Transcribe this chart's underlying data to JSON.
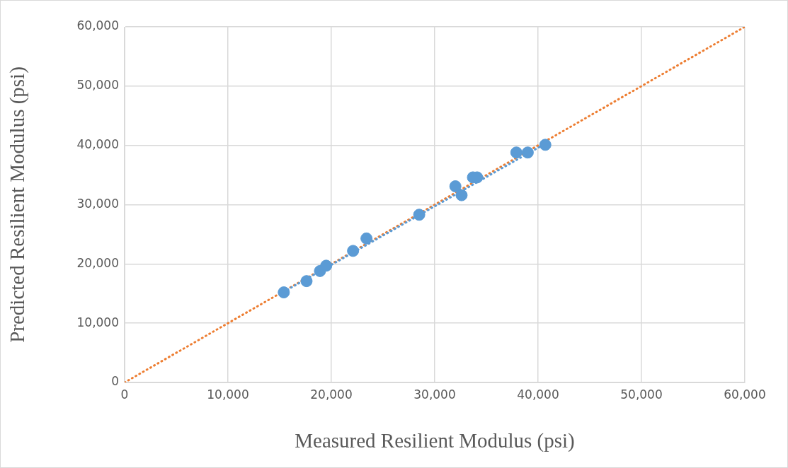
{
  "chart_data": {
    "type": "scatter",
    "xlabel": "Measured Resilient Modulus (psi)",
    "ylabel": "Predicted Resilient Modulus (psi)",
    "xlim": [
      0,
      60000
    ],
    "ylim": [
      0,
      60000
    ],
    "xticks": [
      0,
      {
        "value": 10000,
        "label": "10,000"
      },
      {
        "value": 20000,
        "label": "20,000"
      },
      {
        "value": 30000,
        "label": "30,000"
      },
      {
        "value": 40000,
        "label": "40,000"
      },
      {
        "value": 50000,
        "label": "50,000"
      },
      {
        "value": 60000,
        "label": "60,000"
      }
    ],
    "yticks": [
      0,
      {
        "value": 10000,
        "label": "10,000"
      },
      {
        "value": 20000,
        "label": "20,000"
      },
      {
        "value": 30000,
        "label": "30,000"
      },
      {
        "value": 40000,
        "label": "40,000"
      },
      {
        "value": 50000,
        "label": "50,000"
      },
      {
        "value": 60000,
        "label": "60,000"
      }
    ],
    "grid": true,
    "legend": false,
    "marker": "circle",
    "series": [
      {
        "color": "#5b9bd5",
        "x": [
          15400,
          17600,
          18900,
          19500,
          22100,
          23400,
          28500,
          32000,
          32600,
          33700,
          34100,
          37900,
          39000,
          40700
        ],
        "values": [
          15200,
          17100,
          18800,
          19700,
          22200,
          24300,
          28300,
          33100,
          31600,
          34600,
          34600,
          38800,
          38800,
          40100
        ]
      },
      {
        "type": "line",
        "color": "#5b9bd5",
        "line_style": "dotted",
        "marker": "none",
        "x": [
          15400,
          40700
        ],
        "values": [
          15300,
          40300
        ]
      },
      {
        "type": "line",
        "color": "#ed7d31",
        "line_style": "dotted",
        "marker": "none",
        "x": [
          0,
          60000
        ],
        "values": [
          0,
          60000
        ]
      }
    ]
  }
}
